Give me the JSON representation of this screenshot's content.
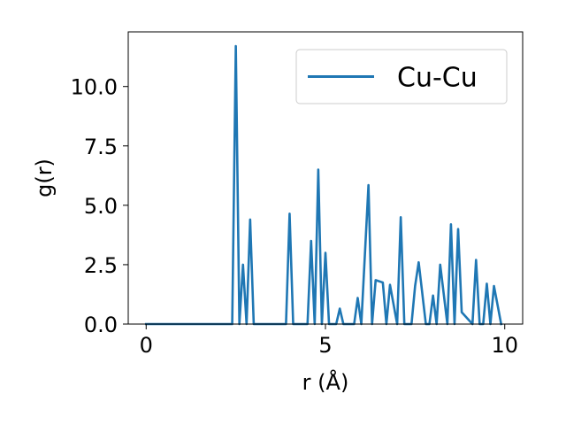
{
  "chart_data": {
    "type": "line",
    "xlabel": "r (Å)",
    "ylabel": "g(r)",
    "xlim": [
      -0.5,
      10.5
    ],
    "ylim": [
      0.0,
      12.3
    ],
    "xticks": [
      0,
      5,
      10
    ],
    "xtick_labels": [
      "0",
      "5",
      "10"
    ],
    "yticks": [
      0.0,
      2.5,
      5.0,
      7.5,
      10.0
    ],
    "ytick_labels": [
      "0.0",
      "2.5",
      "5.0",
      "7.5",
      "10.0"
    ],
    "grid": false,
    "legend_position": "top-right",
    "series": [
      {
        "name": "Cu-Cu",
        "color": "#1f77b4",
        "x": [
          0.0,
          2.4,
          2.5,
          2.6,
          2.7,
          2.8,
          2.9,
          3.0,
          3.9,
          4.0,
          4.1,
          4.5,
          4.6,
          4.7,
          4.8,
          4.9,
          5.0,
          5.1,
          5.3,
          5.4,
          5.5,
          5.8,
          5.9,
          6.0,
          6.2,
          6.3,
          6.4,
          6.6,
          6.7,
          6.8,
          7.0,
          7.1,
          7.2,
          7.4,
          7.5,
          7.6,
          7.8,
          7.9,
          8.0,
          8.1,
          8.2,
          8.4,
          8.5,
          8.6,
          8.7,
          8.8,
          9.1,
          9.2,
          9.3,
          9.4,
          9.5,
          9.6,
          9.7,
          9.8,
          9.9
        ],
        "y": [
          0.0,
          0.0,
          11.7,
          0.0,
          2.5,
          0.0,
          4.4,
          0.0,
          0.0,
          4.65,
          0.0,
          0.0,
          3.5,
          0.0,
          6.5,
          0.0,
          3.0,
          0.0,
          0.0,
          0.65,
          0.0,
          0.0,
          1.1,
          0.0,
          5.85,
          0.0,
          1.85,
          1.75,
          0.0,
          1.65,
          0.0,
          4.5,
          0.0,
          0.0,
          1.6,
          2.6,
          0.0,
          0.0,
          1.2,
          0.0,
          2.5,
          0.0,
          4.2,
          0.0,
          4.0,
          0.5,
          0.0,
          2.7,
          0.0,
          0.0,
          1.7,
          0.0,
          1.6,
          0.8,
          0.0
        ]
      }
    ]
  }
}
